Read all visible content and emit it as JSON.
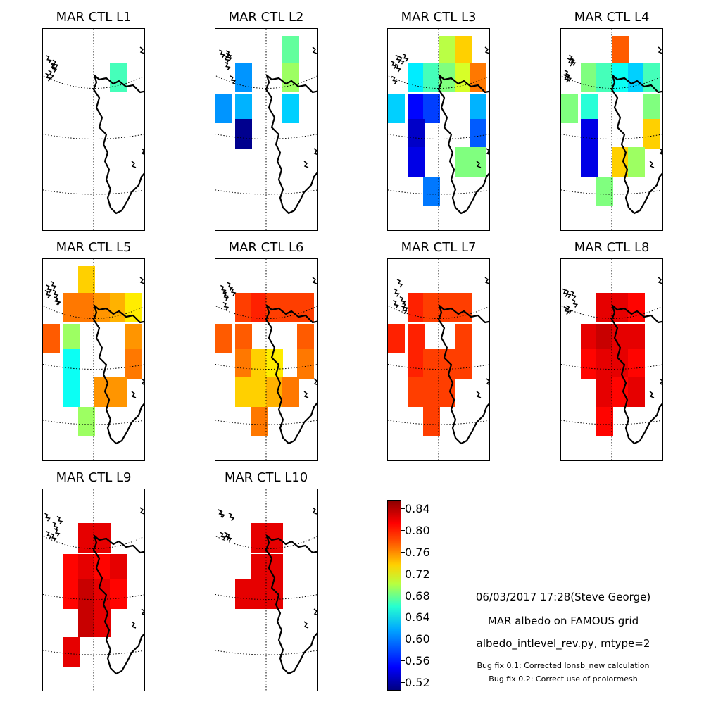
{
  "panels": [
    {
      "title": "MAR CTL L1"
    },
    {
      "title": "MAR CTL L2"
    },
    {
      "title": "MAR CTL L3"
    },
    {
      "title": "MAR CTL L4"
    },
    {
      "title": "MAR CTL L5"
    },
    {
      "title": "MAR CTL L6"
    },
    {
      "title": "MAR CTL L7"
    },
    {
      "title": "MAR CTL L8"
    },
    {
      "title": "MAR CTL L9"
    },
    {
      "title": "MAR CTL L10"
    }
  ],
  "colorbar": {
    "ticks": [
      "0.84",
      "0.80",
      "0.76",
      "0.72",
      "0.68",
      "0.64",
      "0.60",
      "0.56",
      "0.52"
    ],
    "min": 0.505,
    "max": 0.855,
    "colormap": "jet"
  },
  "info": {
    "line1": "06/03/2017 17:28(Steve George)",
    "line2": "MAR albedo on FAMOUS grid",
    "line3": "albedo_intlevel_rev.py, mtype=2",
    "line4": "Bug fix 0.1: Corrected lonsb_new calculation",
    "line5": "Bug fix 0.2: Correct use of pcolormesh"
  },
  "chart_data": {
    "type": "heatmap",
    "colorbar_range": [
      0.505,
      0.855
    ],
    "panels": [
      {
        "name": "MAR CTL L1",
        "cells": [
          {
            "row": 0,
            "col": 3,
            "value": 0.66
          }
        ]
      },
      {
        "name": "MAR CTL L2",
        "cells": [
          {
            "row": -1,
            "col": 3,
            "value": 0.67
          },
          {
            "row": 0,
            "col": 0,
            "value": 0.6
          },
          {
            "row": 0,
            "col": 3,
            "value": 0.69
          },
          {
            "row": 1,
            "col": -1,
            "value": 0.6
          },
          {
            "row": 1,
            "col": 0,
            "value": 0.61
          },
          {
            "row": 1,
            "col": 3,
            "value": 0.62
          },
          {
            "row": 2,
            "col": 0,
            "value": 0.51
          }
        ]
      },
      {
        "name": "MAR CTL L3",
        "cells": [
          {
            "row": -1,
            "col": 2,
            "value": 0.7
          },
          {
            "row": -1,
            "col": 3,
            "value": 0.74
          },
          {
            "row": 0,
            "col": 0,
            "value": 0.63
          },
          {
            "row": 0,
            "col": 1,
            "value": 0.66
          },
          {
            "row": 0,
            "col": 2,
            "value": 0.68
          },
          {
            "row": 0,
            "col": 3,
            "value": 0.71
          },
          {
            "row": 0,
            "col": 4,
            "value": 0.77
          },
          {
            "row": 1,
            "col": -1,
            "value": 0.62
          },
          {
            "row": 1,
            "col": 0,
            "value": 0.55
          },
          {
            "row": 1,
            "col": 1,
            "value": 0.57
          },
          {
            "row": 1,
            "col": 4,
            "value": 0.61
          },
          {
            "row": 2,
            "col": 0,
            "value": 0.53
          },
          {
            "row": 2,
            "col": 4,
            "value": 0.58
          },
          {
            "row": 3,
            "col": 0,
            "value": 0.54
          },
          {
            "row": 3,
            "col": 3,
            "value": 0.68
          },
          {
            "row": 3,
            "col": 4,
            "value": 0.68
          },
          {
            "row": 4,
            "col": 1,
            "value": 0.59
          }
        ]
      },
      {
        "name": "MAR CTL L4",
        "cells": [
          {
            "row": -1,
            "col": 2,
            "value": 0.78
          },
          {
            "row": 0,
            "col": 0,
            "value": 0.68
          },
          {
            "row": 0,
            "col": 1,
            "value": 0.66
          },
          {
            "row": 0,
            "col": 2,
            "value": 0.64
          },
          {
            "row": 0,
            "col": 3,
            "value": 0.62
          },
          {
            "row": 0,
            "col": 4,
            "value": 0.66
          },
          {
            "row": 1,
            "col": -1,
            "value": 0.68
          },
          {
            "row": 1,
            "col": 0,
            "value": 0.65
          },
          {
            "row": 1,
            "col": 4,
            "value": 0.68
          },
          {
            "row": 2,
            "col": 0,
            "value": 0.54
          },
          {
            "row": 2,
            "col": 4,
            "value": 0.74
          },
          {
            "row": 3,
            "col": 0,
            "value": 0.54
          },
          {
            "row": 3,
            "col": 2,
            "value": 0.74
          },
          {
            "row": 3,
            "col": 3,
            "value": 0.69
          },
          {
            "row": 4,
            "col": 1,
            "value": 0.68
          }
        ]
      },
      {
        "name": "MAR CTL L5",
        "cells": [
          {
            "row": -1,
            "col": 1,
            "value": 0.74
          },
          {
            "row": 0,
            "col": 0,
            "value": 0.77
          },
          {
            "row": 0,
            "col": 1,
            "value": 0.77
          },
          {
            "row": 0,
            "col": 2,
            "value": 0.76
          },
          {
            "row": 0,
            "col": 3,
            "value": 0.75
          },
          {
            "row": 0,
            "col": 4,
            "value": 0.73
          },
          {
            "row": 1,
            "col": -1,
            "value": 0.78
          },
          {
            "row": 1,
            "col": 0,
            "value": 0.69
          },
          {
            "row": 1,
            "col": 4,
            "value": 0.76
          },
          {
            "row": 2,
            "col": 0,
            "value": 0.64
          },
          {
            "row": 2,
            "col": 4,
            "value": 0.77
          },
          {
            "row": 3,
            "col": 0,
            "value": 0.64
          },
          {
            "row": 3,
            "col": 2,
            "value": 0.76
          },
          {
            "row": 3,
            "col": 3,
            "value": 0.76
          },
          {
            "row": 4,
            "col": 1,
            "value": 0.69
          }
        ]
      },
      {
        "name": "MAR CTL L6",
        "cells": [
          {
            "row": 0,
            "col": 0,
            "value": 0.79
          },
          {
            "row": 0,
            "col": 1,
            "value": 0.8
          },
          {
            "row": 0,
            "col": 2,
            "value": 0.79
          },
          {
            "row": 0,
            "col": 3,
            "value": 0.79
          },
          {
            "row": 0,
            "col": 4,
            "value": 0.79
          },
          {
            "row": 1,
            "col": -1,
            "value": 0.78
          },
          {
            "row": 1,
            "col": 0,
            "value": 0.78
          },
          {
            "row": 1,
            "col": 4,
            "value": 0.78
          },
          {
            "row": 2,
            "col": 0,
            "value": 0.77
          },
          {
            "row": 2,
            "col": 1,
            "value": 0.74
          },
          {
            "row": 2,
            "col": 2,
            "value": 0.73
          },
          {
            "row": 2,
            "col": 4,
            "value": 0.77
          },
          {
            "row": 3,
            "col": 0,
            "value": 0.74
          },
          {
            "row": 3,
            "col": 1,
            "value": 0.74
          },
          {
            "row": 3,
            "col": 2,
            "value": 0.75
          },
          {
            "row": 3,
            "col": 3,
            "value": 0.77
          },
          {
            "row": 4,
            "col": 1,
            "value": 0.77
          }
        ]
      },
      {
        "name": "MAR CTL L7",
        "cells": [
          {
            "row": 0,
            "col": 0,
            "value": 0.8
          },
          {
            "row": 0,
            "col": 1,
            "value": 0.79
          },
          {
            "row": 0,
            "col": 2,
            "value": 0.79
          },
          {
            "row": 0,
            "col": 3,
            "value": 0.79
          },
          {
            "row": 1,
            "col": -1,
            "value": 0.8
          },
          {
            "row": 1,
            "col": 0,
            "value": 0.8
          },
          {
            "row": 1,
            "col": 3,
            "value": 0.79
          },
          {
            "row": 2,
            "col": 0,
            "value": 0.8
          },
          {
            "row": 2,
            "col": 1,
            "value": 0.79
          },
          {
            "row": 2,
            "col": 2,
            "value": 0.79
          },
          {
            "row": 2,
            "col": 3,
            "value": 0.79
          },
          {
            "row": 3,
            "col": 0,
            "value": 0.79
          },
          {
            "row": 3,
            "col": 1,
            "value": 0.79
          },
          {
            "row": 3,
            "col": 2,
            "value": 0.79
          },
          {
            "row": 4,
            "col": 1,
            "value": 0.79
          }
        ]
      },
      {
        "name": "MAR CTL L8",
        "cells": [
          {
            "row": 0,
            "col": 1,
            "value": 0.82
          },
          {
            "row": 0,
            "col": 2,
            "value": 0.82
          },
          {
            "row": 0,
            "col": 3,
            "value": 0.81
          },
          {
            "row": 1,
            "col": 0,
            "value": 0.82
          },
          {
            "row": 1,
            "col": 1,
            "value": 0.83
          },
          {
            "row": 1,
            "col": 2,
            "value": 0.82
          },
          {
            "row": 1,
            "col": 3,
            "value": 0.82
          },
          {
            "row": 2,
            "col": 0,
            "value": 0.81
          },
          {
            "row": 2,
            "col": 1,
            "value": 0.82
          },
          {
            "row": 2,
            "col": 2,
            "value": 0.82
          },
          {
            "row": 2,
            "col": 3,
            "value": 0.81
          },
          {
            "row": 3,
            "col": 1,
            "value": 0.82
          },
          {
            "row": 3,
            "col": 2,
            "value": 0.81
          },
          {
            "row": 3,
            "col": 3,
            "value": 0.82
          },
          {
            "row": 4,
            "col": 1,
            "value": 0.81
          }
        ]
      },
      {
        "name": "MAR CTL L9",
        "cells": [
          {
            "row": 0,
            "col": 1,
            "value": 0.82
          },
          {
            "row": 0,
            "col": 2,
            "value": 0.82
          },
          {
            "row": 1,
            "col": 0,
            "value": 0.81
          },
          {
            "row": 1,
            "col": 1,
            "value": 0.82
          },
          {
            "row": 1,
            "col": 2,
            "value": 0.81
          },
          {
            "row": 1,
            "col": 3,
            "value": 0.82
          },
          {
            "row": 2,
            "col": 0,
            "value": 0.81
          },
          {
            "row": 2,
            "col": 1,
            "value": 0.83
          },
          {
            "row": 2,
            "col": 2,
            "value": 0.82
          },
          {
            "row": 2,
            "col": 3,
            "value": 0.81
          },
          {
            "row": 3,
            "col": 1,
            "value": 0.83
          },
          {
            "row": 3,
            "col": 2,
            "value": 0.82
          },
          {
            "row": 4,
            "col": 0,
            "value": 0.82
          }
        ]
      },
      {
        "name": "MAR CTL L10",
        "cells": [
          {
            "row": 0,
            "col": 1,
            "value": 0.82
          },
          {
            "row": 0,
            "col": 2,
            "value": 0.82
          },
          {
            "row": 1,
            "col": 1,
            "value": 0.82
          },
          {
            "row": 1,
            "col": 2,
            "value": 0.82
          },
          {
            "row": 2,
            "col": 0,
            "value": 0.82
          },
          {
            "row": 2,
            "col": 1,
            "value": 0.82
          },
          {
            "row": 2,
            "col": 2,
            "value": 0.82
          }
        ]
      }
    ]
  }
}
